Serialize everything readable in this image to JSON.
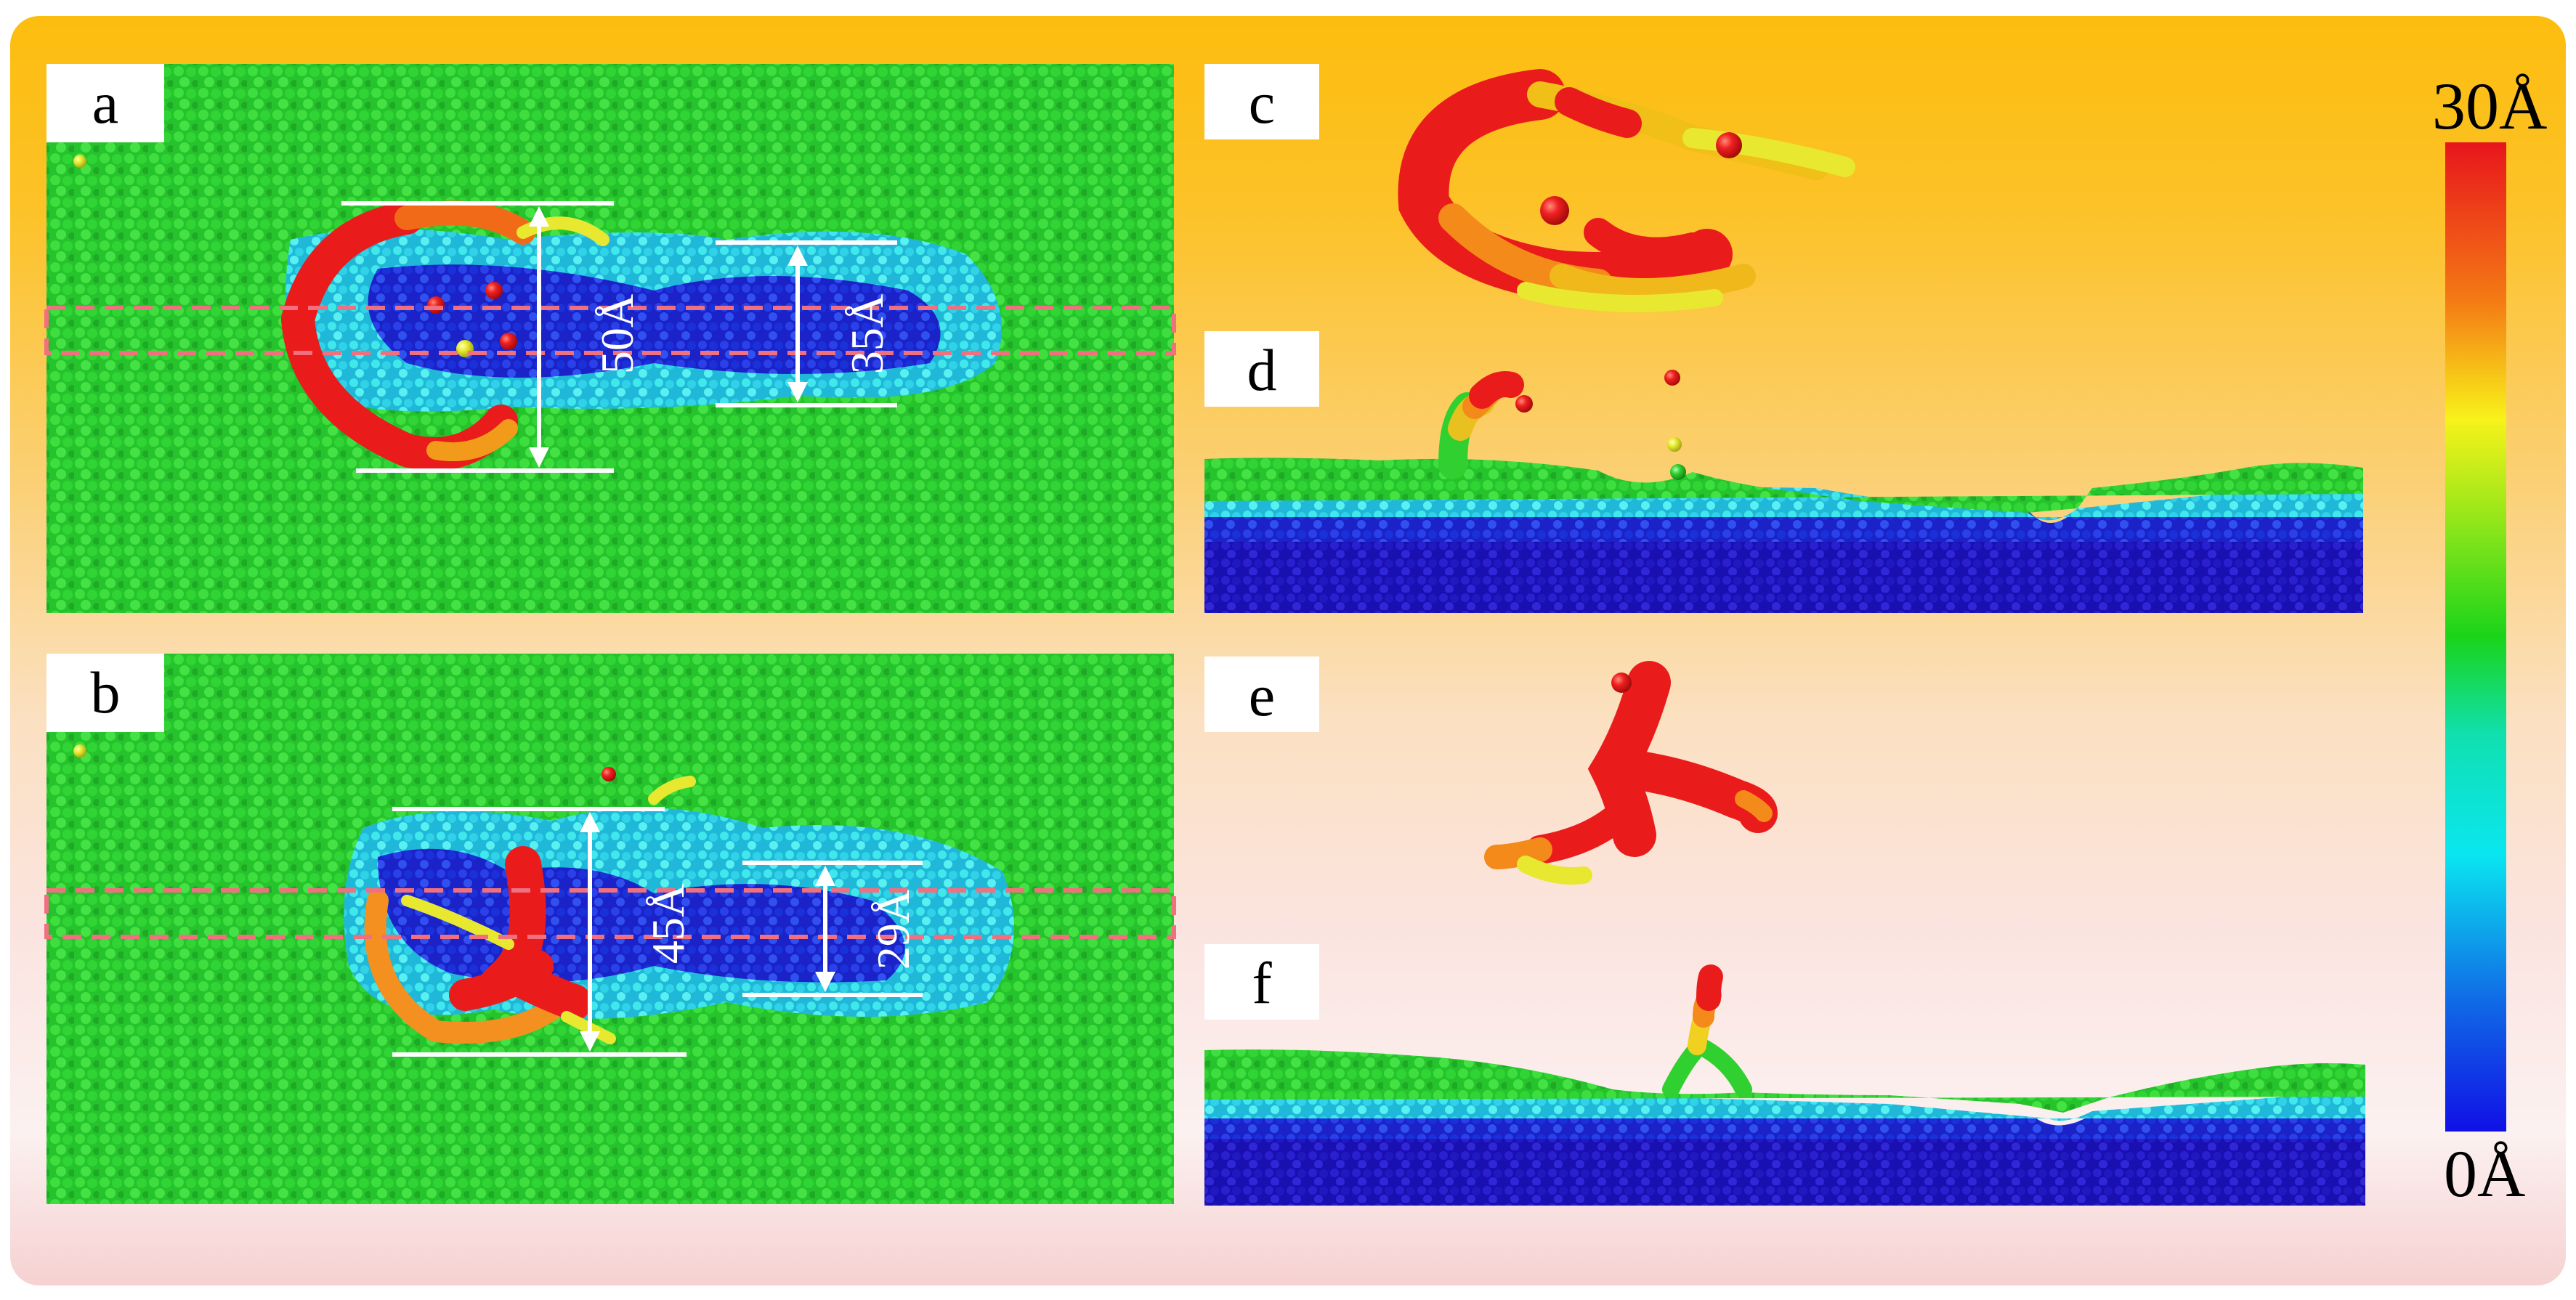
{
  "panels": {
    "a": {
      "label": "a",
      "measure_wide": "50Å",
      "measure_narrow": "35Å"
    },
    "b": {
      "label": "b",
      "measure_wide": "45Å",
      "measure_narrow": "29Å"
    },
    "c": {
      "label": "c"
    },
    "d": {
      "label": "d"
    },
    "e": {
      "label": "e"
    },
    "f": {
      "label": "f"
    }
  },
  "scale": {
    "max_label": "30Å",
    "min_label": "0Å",
    "colors": [
      "#e8151c",
      "#f47a14",
      "#f8f21a",
      "#9fe81a",
      "#1ad41a",
      "#10e0b0",
      "#0ae6f0",
      "#1070e6",
      "#1010e6"
    ]
  },
  "colors": {
    "surface_green": "#22c22a",
    "groove_blue": "#1830d8",
    "groove_cyan": "#35d8e2",
    "particle_red": "#ea1b1b",
    "guide_dashed": "#f07080",
    "measure_line": "#ffffff"
  }
}
